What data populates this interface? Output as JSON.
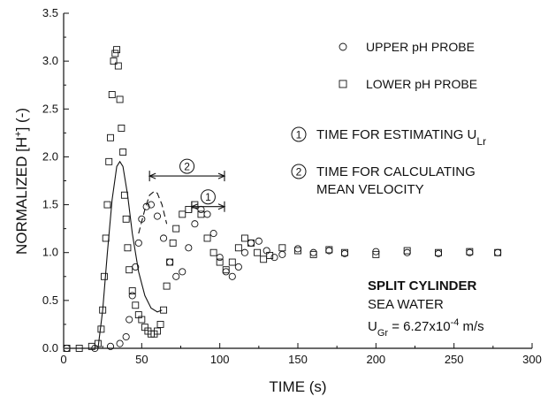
{
  "chart_data": {
    "type": "scatter",
    "xlabel": "TIME (s)",
    "ylabel": "NORMALIZED [H+] (-)",
    "xlim": [
      0,
      300
    ],
    "ylim": [
      0,
      3.5
    ],
    "x_ticks": [
      "0",
      "50",
      "100",
      "150",
      "200",
      "250",
      "300"
    ],
    "y_ticks": [
      "0.0",
      "0.5",
      "1.0",
      "1.5",
      "2.0",
      "2.5",
      "3.0",
      "3.5"
    ],
    "series": [
      {
        "name": "UPPER pH PROBE",
        "marker": "circle",
        "points": [
          [
            2,
            0.0
          ],
          [
            20,
            0.0
          ],
          [
            30,
            0.02
          ],
          [
            36,
            0.05
          ],
          [
            40,
            0.12
          ],
          [
            42,
            0.3
          ],
          [
            44,
            0.55
          ],
          [
            46,
            0.85
          ],
          [
            48,
            1.1
          ],
          [
            50,
            1.35
          ],
          [
            53,
            1.48
          ],
          [
            56,
            1.5
          ],
          [
            60,
            1.38
          ],
          [
            64,
            1.15
          ],
          [
            68,
            0.9
          ],
          [
            72,
            0.75
          ],
          [
            76,
            0.8
          ],
          [
            80,
            1.05
          ],
          [
            84,
            1.3
          ],
          [
            88,
            1.45
          ],
          [
            92,
            1.4
          ],
          [
            96,
            1.2
          ],
          [
            100,
            0.95
          ],
          [
            104,
            0.8
          ],
          [
            108,
            0.75
          ],
          [
            112,
            0.85
          ],
          [
            116,
            1.0
          ],
          [
            120,
            1.1
          ],
          [
            125,
            1.12
          ],
          [
            130,
            1.02
          ],
          [
            135,
            0.95
          ],
          [
            140,
            0.98
          ],
          [
            150,
            1.04
          ],
          [
            160,
            1.0
          ],
          [
            170,
            1.02
          ],
          [
            180,
            0.99
          ],
          [
            200,
            1.01
          ],
          [
            220,
            1.0
          ],
          [
            240,
            0.99
          ],
          [
            260,
            1.0
          ],
          [
            278,
            1.0
          ]
        ]
      },
      {
        "name": "LOWER pH PROBE",
        "marker": "square",
        "points": [
          [
            2,
            0.0
          ],
          [
            10,
            0.0
          ],
          [
            18,
            0.02
          ],
          [
            22,
            0.05
          ],
          [
            24,
            0.2
          ],
          [
            25,
            0.4
          ],
          [
            26,
            0.75
          ],
          [
            27,
            1.15
          ],
          [
            28,
            1.5
          ],
          [
            29,
            1.95
          ],
          [
            30,
            2.2
          ],
          [
            31,
            2.65
          ],
          [
            32,
            3.0
          ],
          [
            33,
            3.08
          ],
          [
            34,
            3.12
          ],
          [
            35,
            2.95
          ],
          [
            36,
            2.6
          ],
          [
            37,
            2.3
          ],
          [
            38,
            2.05
          ],
          [
            39,
            1.6
          ],
          [
            40,
            1.35
          ],
          [
            41,
            1.05
          ],
          [
            42,
            0.82
          ],
          [
            44,
            0.6
          ],
          [
            46,
            0.45
          ],
          [
            48,
            0.35
          ],
          [
            50,
            0.3
          ],
          [
            52,
            0.22
          ],
          [
            54,
            0.18
          ],
          [
            56,
            0.15
          ],
          [
            58,
            0.15
          ],
          [
            60,
            0.18
          ],
          [
            62,
            0.25
          ],
          [
            64,
            0.4
          ],
          [
            66,
            0.65
          ],
          [
            68,
            0.9
          ],
          [
            70,
            1.1
          ],
          [
            72,
            1.25
          ],
          [
            76,
            1.4
          ],
          [
            80,
            1.45
          ],
          [
            84,
            1.5
          ],
          [
            88,
            1.4
          ],
          [
            92,
            1.15
          ],
          [
            96,
            1.0
          ],
          [
            100,
            0.9
          ],
          [
            104,
            0.82
          ],
          [
            108,
            0.9
          ],
          [
            112,
            1.05
          ],
          [
            116,
            1.15
          ],
          [
            120,
            1.1
          ],
          [
            124,
            1.0
          ],
          [
            128,
            0.93
          ],
          [
            132,
            0.97
          ],
          [
            140,
            1.05
          ],
          [
            150,
            1.02
          ],
          [
            160,
            0.98
          ],
          [
            170,
            1.03
          ],
          [
            180,
            1.0
          ],
          [
            200,
            0.98
          ],
          [
            220,
            1.02
          ],
          [
            240,
            1.0
          ],
          [
            260,
            1.01
          ],
          [
            278,
            1.0
          ]
        ]
      },
      {
        "name": "",
        "style": "solid",
        "points": [
          [
            22,
            0.0
          ],
          [
            25,
            0.4
          ],
          [
            28,
            1.0
          ],
          [
            31,
            1.55
          ],
          [
            34,
            1.9
          ],
          [
            36,
            1.95
          ],
          [
            38,
            1.9
          ],
          [
            41,
            1.6
          ],
          [
            44,
            1.2
          ],
          [
            48,
            0.8
          ],
          [
            52,
            0.55
          ],
          [
            56,
            0.42
          ],
          [
            60,
            0.38
          ],
          [
            63,
            0.4
          ]
        ]
      },
      {
        "name": "",
        "style": "dashed",
        "points": [
          [
            48,
            1.2
          ],
          [
            52,
            1.45
          ],
          [
            55,
            1.6
          ],
          [
            58,
            1.64
          ],
          [
            60,
            1.62
          ],
          [
            63,
            1.5
          ],
          [
            66,
            1.3
          ]
        ]
      }
    ],
    "legend": {
      "position": "top-right",
      "items": [
        {
          "marker": "circle",
          "label": "UPPER pH PROBE"
        },
        {
          "marker": "square",
          "label": "LOWER pH PROBE"
        },
        {
          "marker": "num1",
          "symbol": "1",
          "label": "TIME FOR ESTIMATING U",
          "sub": "Lr"
        },
        {
          "marker": "num2",
          "symbol": "2",
          "label": "TIME FOR CALCULATING",
          "label2": "MEAN VELOCITY"
        }
      ]
    },
    "brackets": [
      {
        "symbol": "2",
        "x_start": 55,
        "x_end": 103,
        "y": 1.8
      },
      {
        "symbol": "1",
        "x_start": 82,
        "x_end": 103,
        "y": 1.48
      }
    ],
    "annotation": {
      "line1": "SPLIT CYLINDER",
      "line2": "SEA WATER",
      "line3_prefix": "U",
      "line3_sub": "Gr",
      "line3_mid": " = 6.27x10",
      "line3_exp": "-4",
      "line3_suffix": " m/s"
    }
  }
}
